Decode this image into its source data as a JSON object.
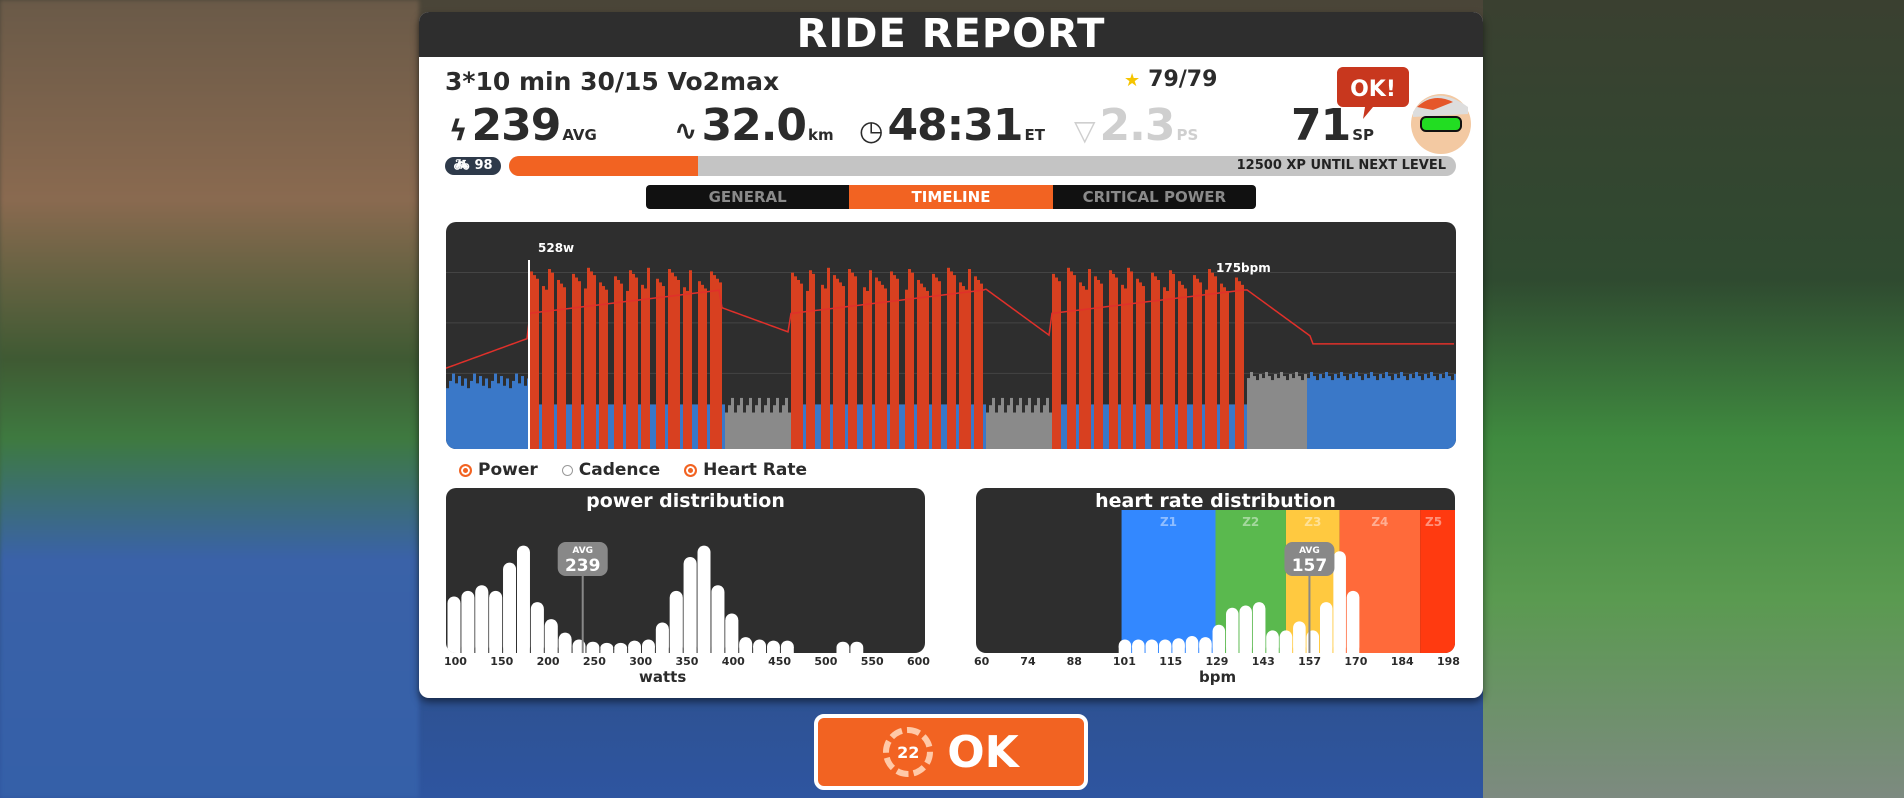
{
  "header": {
    "title": "RIDE REPORT"
  },
  "workout": {
    "name": "3*10 min 30/15 Vo2max",
    "stars": "79/79"
  },
  "stats": [
    {
      "icon": "lightning-icon",
      "value": "239",
      "unit": "AVG"
    },
    {
      "icon": "route-icon",
      "value": "32.0",
      "unit": "km"
    },
    {
      "icon": "clock-icon",
      "value": "48:31",
      "unit": "ET"
    },
    {
      "icon": "pizza-icon",
      "value": "2.3",
      "unit": "PS"
    },
    {
      "icon": "none",
      "value": "71",
      "unit": "SP"
    }
  ],
  "avatar": {
    "bubble": "OK!"
  },
  "level": {
    "value": "98",
    "xp_progress": 0.2,
    "xp_text": "12500 XP UNTIL NEXT LEVEL"
  },
  "tabs": [
    {
      "label": "GENERAL",
      "active": false
    },
    {
      "label": "TIMELINE",
      "active": true
    },
    {
      "label": "CRITICAL POWER",
      "active": false
    }
  ],
  "timeline": {
    "max_power_label": "528w",
    "max_hr_label": "175bpm",
    "colors": {
      "z1": "#3a78c8",
      "z2": "#58b04a",
      "z3": "#8a8a8a",
      "vo2": "#d84020",
      "hr": "#e0302a"
    }
  },
  "legend": [
    {
      "label": "Power",
      "on": true
    },
    {
      "label": "Cadence",
      "on": false
    },
    {
      "label": "Heart Rate",
      "on": true
    }
  ],
  "chart_data": [
    {
      "type": "bar",
      "title": "power distribution",
      "xlabel": "watts",
      "xticks": [
        "100",
        "150",
        "200",
        "250",
        "300",
        "350",
        "400",
        "450",
        "500",
        "550",
        "600"
      ],
      "xlim": [
        100,
        600
      ],
      "avg_label": "AVG",
      "avg": 239,
      "x": [
        100,
        115,
        130,
        145,
        160,
        175,
        190,
        205,
        220,
        235,
        250,
        265,
        280,
        295,
        310,
        325,
        340,
        355,
        370,
        385,
        400,
        415,
        430,
        445,
        460,
        475,
        490,
        505,
        520,
        535
      ],
      "values": [
        0.5,
        0.55,
        0.6,
        0.55,
        0.8,
        0.95,
        0.45,
        0.3,
        0.18,
        0.12,
        0.1,
        0.09,
        0.09,
        0.11,
        0.12,
        0.27,
        0.55,
        0.85,
        0.95,
        0.6,
        0.35,
        0.14,
        0.12,
        0.11,
        0.11,
        0,
        0,
        0,
        0.1,
        0.1
      ]
    },
    {
      "type": "bar",
      "title": "heart rate distribution",
      "xlabel": "bpm",
      "xticks": [
        "60",
        "74",
        "88",
        "101",
        "115",
        "129",
        "143",
        "157",
        "170",
        "184",
        "198"
      ],
      "xlim": [
        60,
        198
      ],
      "avg_label": "AVG",
      "avg": 157,
      "zones": [
        {
          "name": "Z1",
          "from": 101,
          "to": 129,
          "color": "#3388ff"
        },
        {
          "name": "Z2",
          "from": 129,
          "to": 150,
          "color": "#5ab94e"
        },
        {
          "name": "Z3",
          "from": 150,
          "to": 166,
          "color": "#ffc940"
        },
        {
          "name": "Z4",
          "from": 166,
          "to": 190,
          "color": "#ff6a3a"
        },
        {
          "name": "Z5",
          "from": 190,
          "to": 198,
          "color": "#ff3a10"
        }
      ],
      "x": [
        102,
        106,
        110,
        114,
        118,
        122,
        126,
        130,
        134,
        138,
        142,
        146,
        150,
        154,
        158,
        162,
        166,
        170,
        174
      ],
      "values": [
        0.12,
        0.12,
        0.12,
        0.12,
        0.13,
        0.15,
        0.14,
        0.25,
        0.4,
        0.42,
        0.45,
        0.2,
        0.2,
        0.28,
        0.2,
        0.45,
        0.9,
        0.55,
        0
      ]
    }
  ]
}
